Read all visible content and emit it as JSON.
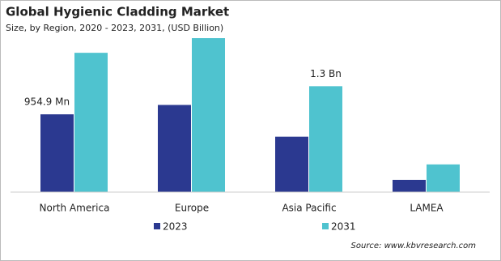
{
  "chart_data": {
    "type": "bar",
    "title": "Global Hygienic Cladding Market",
    "subtitle": "Size, by Region, 2020 - 2023, 2031, (USD Billion)",
    "source": "Source: www.kbvresearch.com",
    "categories": [
      "North America",
      "Europe",
      "Asia Pacific",
      "LAMEA"
    ],
    "series": [
      {
        "name": "2023",
        "color": "#2b3990",
        "values": [
          0.9549,
          1.07,
          0.68,
          0.15
        ],
        "value_labels": [
          "954.9 Mn",
          null,
          null,
          null
        ]
      },
      {
        "name": "2031",
        "color": "#4fc3cf",
        "values": [
          1.71,
          1.89,
          1.3,
          0.34
        ],
        "value_labels": [
          null,
          null,
          "1.3 Bn",
          null
        ]
      }
    ],
    "ylim": [
      0,
      2
    ]
  }
}
